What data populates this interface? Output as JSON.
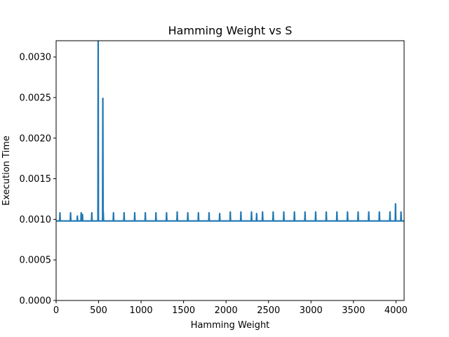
{
  "chart_data": {
    "type": "line",
    "title": "Hamming Weight vs S",
    "xlabel": "Hamming Weight",
    "ylabel": "Execution Time",
    "xlim": [
      0,
      4096
    ],
    "ylim": [
      0,
      0.0032
    ],
    "xticks": [
      0,
      500,
      1000,
      1500,
      2000,
      2500,
      3000,
      3500,
      4000
    ],
    "yticks": [
      "0.0000",
      "0.0005",
      "0.0010",
      "0.0015",
      "0.0020",
      "0.0025",
      "0.0030"
    ],
    "grid": false,
    "line_color": "#1f77b4",
    "baseline": 0.00098,
    "spikes": [
      {
        "x": 45,
        "y": 0.00108
      },
      {
        "x": 170,
        "y": 0.00108
      },
      {
        "x": 250,
        "y": 0.00104
      },
      {
        "x": 295,
        "y": 0.00108
      },
      {
        "x": 310,
        "y": 0.00106
      },
      {
        "x": 420,
        "y": 0.00108
      },
      {
        "x": 495,
        "y": 0.0032
      },
      {
        "x": 550,
        "y": 0.00249
      },
      {
        "x": 555,
        "y": 0.00109
      },
      {
        "x": 675,
        "y": 0.00108
      },
      {
        "x": 800,
        "y": 0.00108
      },
      {
        "x": 925,
        "y": 0.00108
      },
      {
        "x": 1050,
        "y": 0.00108
      },
      {
        "x": 1175,
        "y": 0.00108
      },
      {
        "x": 1300,
        "y": 0.00108
      },
      {
        "x": 1425,
        "y": 0.00109
      },
      {
        "x": 1550,
        "y": 0.00108
      },
      {
        "x": 1675,
        "y": 0.00108
      },
      {
        "x": 1800,
        "y": 0.00108
      },
      {
        "x": 1925,
        "y": 0.00107
      },
      {
        "x": 2050,
        "y": 0.00109
      },
      {
        "x": 2175,
        "y": 0.00109
      },
      {
        "x": 2300,
        "y": 0.00109
      },
      {
        "x": 2360,
        "y": 0.00107
      },
      {
        "x": 2430,
        "y": 0.00109
      },
      {
        "x": 2555,
        "y": 0.00109
      },
      {
        "x": 2680,
        "y": 0.00109
      },
      {
        "x": 2805,
        "y": 0.00109
      },
      {
        "x": 2930,
        "y": 0.00109
      },
      {
        "x": 3055,
        "y": 0.00109
      },
      {
        "x": 3180,
        "y": 0.00109
      },
      {
        "x": 3305,
        "y": 0.00109
      },
      {
        "x": 3430,
        "y": 0.00109
      },
      {
        "x": 3555,
        "y": 0.00109
      },
      {
        "x": 3680,
        "y": 0.00109
      },
      {
        "x": 3805,
        "y": 0.00109
      },
      {
        "x": 3930,
        "y": 0.00109
      },
      {
        "x": 3995,
        "y": 0.00119
      },
      {
        "x": 4060,
        "y": 0.00109
      }
    ]
  }
}
